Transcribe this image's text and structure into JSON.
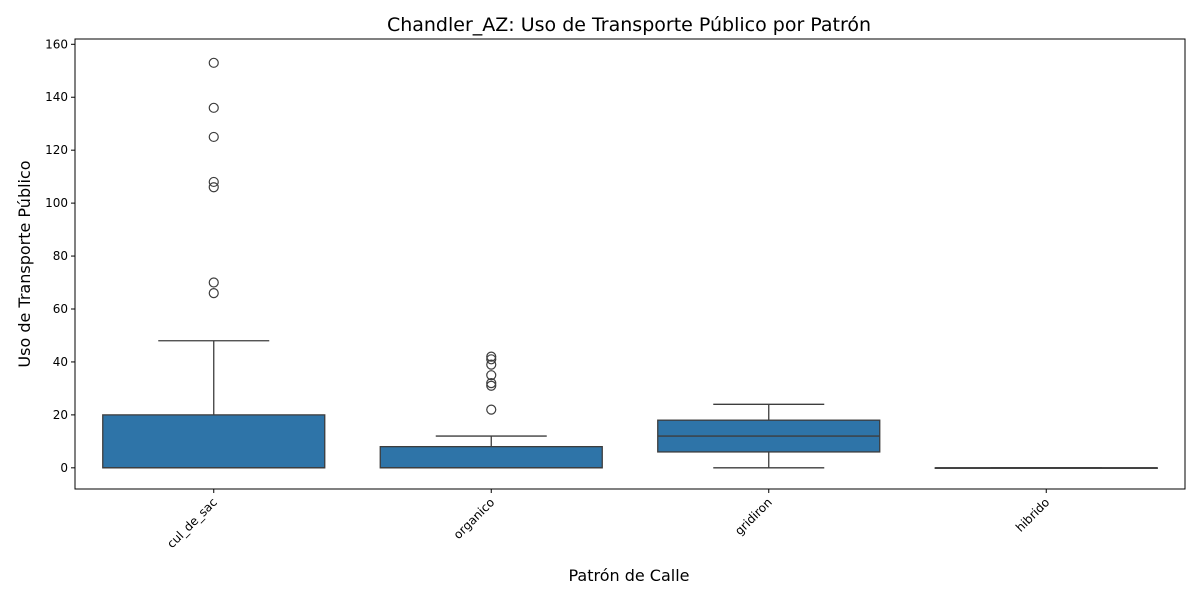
{
  "chart_data": {
    "type": "box",
    "title": "Chandler_AZ: Uso de Transporte Público por Patrón",
    "xlabel": "Patrón de Calle",
    "ylabel": "Uso de Transporte Público",
    "ylim": [
      -8,
      162
    ],
    "yticks": [
      0,
      20,
      40,
      60,
      80,
      100,
      120,
      140,
      160
    ],
    "grid": false,
    "box_color": "#2e74a8",
    "edge_color": "#3d3d3d",
    "categories": [
      "cul_de_sac",
      "organico",
      "gridiron",
      "hibrido"
    ],
    "boxes": [
      {
        "category": "cul_de_sac",
        "whisker_low": 0,
        "q1": 0,
        "median": 0,
        "q3": 20,
        "whisker_high": 48,
        "outliers": [
          66,
          70,
          106,
          108,
          125,
          136,
          153
        ]
      },
      {
        "category": "organico",
        "whisker_low": 0,
        "q1": 0,
        "median": 0,
        "q3": 8,
        "whisker_high": 12,
        "outliers": [
          22,
          31,
          32,
          35,
          39,
          41,
          42
        ]
      },
      {
        "category": "gridiron",
        "whisker_low": 0,
        "q1": 6,
        "median": 12,
        "q3": 18,
        "whisker_high": 24,
        "outliers": []
      },
      {
        "category": "hibrido",
        "whisker_low": 0,
        "q1": 0,
        "median": 0,
        "q3": 0,
        "whisker_high": 0,
        "outliers": []
      }
    ]
  }
}
